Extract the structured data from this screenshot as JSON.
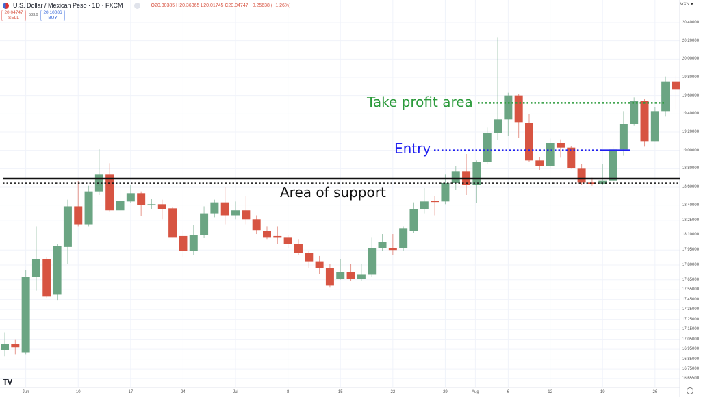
{
  "header": {
    "title": "U.S. Dollar / Mexican Peso · 1D · FXCM",
    "ohlc": "O20.30385 H20.36365 L20.01745 C20.04747 −0.25638 (−1.26%)",
    "sell_price": "20.04747",
    "sell_label": "SELL",
    "spread": "533.9",
    "buy_price": "20.10086",
    "buy_label": "BUY",
    "currency": "MXN ▾"
  },
  "logo": "TV",
  "colors": {
    "up": "#6ba583",
    "down": "#d75442",
    "take_profit": "#2b9a3b",
    "entry": "#1f1ff0",
    "support": "#111111"
  },
  "chart_data": {
    "type": "candlestick",
    "title": "U.S. Dollar / Mexican Peso · 1D · FXCM",
    "y_ticks": [
      "20.40000",
      "20.20000",
      "20.00000",
      "19.80000",
      "19.60000",
      "19.40000",
      "19.20000",
      "19.00000",
      "18.80000",
      "18.60000",
      "18.40000",
      "18.25000",
      "18.10000",
      "17.95000",
      "17.80000",
      "17.65000",
      "17.55000",
      "17.45000",
      "17.35000",
      "17.25000",
      "17.15000",
      "17.05000",
      "16.95000",
      "16.85000",
      "16.75000",
      "16.65500"
    ],
    "x_ticks": [
      {
        "label": "Jun",
        "index": 2
      },
      {
        "label": "10",
        "index": 7
      },
      {
        "label": "17",
        "index": 12
      },
      {
        "label": "24",
        "index": 17
      },
      {
        "label": "Jul",
        "index": 22
      },
      {
        "label": "8",
        "index": 27
      },
      {
        "label": "15",
        "index": 32
      },
      {
        "label": "22",
        "index": 37
      },
      {
        "label": "29",
        "index": 42
      },
      {
        "label": "Aug",
        "index": 45
      },
      {
        "label": "6",
        "index": 48
      },
      {
        "label": "12",
        "index": 52
      },
      {
        "label": "19",
        "index": 57
      },
      {
        "label": "26",
        "index": 62
      }
    ],
    "ohlc": [
      [
        16.94,
        17.12,
        16.88,
        17.0
      ],
      [
        17.0,
        17.05,
        16.9,
        16.97
      ],
      [
        16.92,
        17.75,
        16.9,
        17.68
      ],
      [
        17.68,
        18.19,
        17.54,
        17.86
      ],
      [
        17.86,
        17.88,
        17.47,
        17.48
      ],
      [
        17.5,
        18.01,
        17.44,
        17.99
      ],
      [
        17.98,
        18.46,
        17.81,
        18.39
      ],
      [
        18.39,
        18.66,
        18.19,
        18.21
      ],
      [
        18.21,
        18.61,
        18.19,
        18.55
      ],
      [
        18.55,
        19.02,
        18.51,
        18.74
      ],
      [
        18.74,
        18.86,
        18.34,
        18.35
      ],
      [
        18.35,
        18.68,
        18.34,
        18.45
      ],
      [
        18.44,
        18.62,
        18.42,
        18.53
      ],
      [
        18.53,
        18.55,
        18.29,
        18.4
      ],
      [
        18.4,
        18.47,
        18.36,
        18.41
      ],
      [
        18.41,
        18.46,
        18.26,
        18.36
      ],
      [
        18.37,
        18.38,
        18.08,
        18.08
      ],
      [
        18.09,
        18.15,
        17.88,
        17.94
      ],
      [
        17.94,
        18.2,
        17.9,
        18.1
      ],
      [
        18.1,
        18.39,
        18.07,
        18.32
      ],
      [
        18.32,
        18.46,
        18.28,
        18.43
      ],
      [
        18.43,
        18.6,
        18.21,
        18.3
      ],
      [
        18.3,
        18.44,
        18.26,
        18.35
      ],
      [
        18.35,
        18.5,
        18.21,
        18.26
      ],
      [
        18.26,
        18.3,
        18.11,
        18.15
      ],
      [
        18.14,
        18.19,
        18.06,
        18.08
      ],
      [
        18.09,
        18.19,
        18.01,
        18.08
      ],
      [
        18.08,
        18.1,
        17.97,
        18.01
      ],
      [
        18.01,
        18.06,
        17.9,
        17.92
      ],
      [
        17.92,
        17.94,
        17.77,
        17.83
      ],
      [
        17.83,
        17.89,
        17.71,
        17.77
      ],
      [
        17.77,
        17.81,
        17.57,
        17.59
      ],
      [
        17.66,
        17.86,
        17.65,
        17.73
      ],
      [
        17.73,
        17.81,
        17.64,
        17.66
      ],
      [
        17.66,
        17.81,
        17.64,
        17.7
      ],
      [
        17.7,
        18.08,
        17.68,
        17.97
      ],
      [
        17.97,
        18.11,
        17.94,
        18.03
      ],
      [
        17.97,
        18.11,
        17.9,
        17.95
      ],
      [
        17.97,
        18.19,
        17.94,
        18.17
      ],
      [
        18.14,
        18.43,
        18.12,
        18.36
      ],
      [
        18.36,
        18.59,
        18.32,
        18.44
      ],
      [
        18.445,
        18.5,
        18.3,
        18.435
      ],
      [
        18.44,
        18.74,
        18.41,
        18.64
      ],
      [
        18.64,
        18.83,
        18.57,
        18.77
      ],
      [
        18.77,
        18.96,
        18.51,
        18.62
      ],
      [
        18.62,
        18.89,
        18.42,
        18.87
      ],
      [
        18.87,
        19.25,
        18.85,
        19.19
      ],
      [
        19.19,
        20.24,
        19.11,
        19.34
      ],
      [
        19.34,
        19.63,
        19.16,
        19.6
      ],
      [
        19.6,
        19.62,
        19.14,
        19.31
      ],
      [
        19.3,
        19.4,
        18.87,
        18.89
      ],
      [
        18.89,
        18.93,
        18.78,
        18.83
      ],
      [
        18.83,
        19.13,
        18.8,
        19.08
      ],
      [
        19.08,
        19.12,
        18.92,
        19.03
      ],
      [
        19.03,
        19.05,
        18.8,
        18.81
      ],
      [
        18.8,
        18.85,
        18.62,
        18.65
      ],
      [
        18.65,
        18.7,
        18.61,
        18.63
      ],
      [
        18.63,
        18.85,
        18.62,
        18.67
      ],
      [
        18.67,
        19.05,
        18.64,
        19.01
      ],
      [
        19.01,
        19.43,
        18.94,
        19.29
      ],
      [
        19.29,
        19.58,
        19.27,
        19.54
      ],
      [
        19.54,
        19.56,
        19.04,
        19.1
      ],
      [
        19.1,
        19.47,
        19.1,
        19.43
      ],
      [
        19.43,
        19.81,
        19.37,
        19.75
      ],
      [
        19.75,
        19.82,
        19.45,
        19.67
      ]
    ],
    "annotations": [
      {
        "label": "Take profit area",
        "price": 19.52,
        "from_index": 45,
        "to_index": 63,
        "style": "dotted",
        "color": "#2b9a3b"
      },
      {
        "label": "Entry",
        "price": 19.0,
        "from_index": 41,
        "to_index": 57,
        "style": "dotted",
        "color": "#1f1ff0",
        "solid_from_index": 57,
        "solid_to_index": 60
      },
      {
        "label": "Area of support",
        "price": 18.69,
        "style": "solid",
        "color": "#111111"
      },
      {
        "label": "",
        "price": 18.64,
        "style": "dotted",
        "color": "#111111"
      }
    ]
  }
}
